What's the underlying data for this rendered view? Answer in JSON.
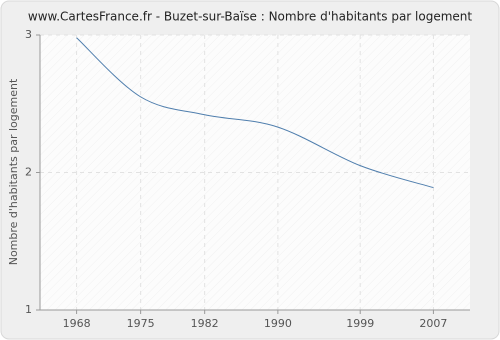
{
  "chart_data": {
    "type": "line",
    "title": "www.CartesFrance.fr - Buzet-sur-Baïse : Nombre d'habitants par logement",
    "y_label": "Nombre d'habitants par logement",
    "x": [
      1968,
      1975,
      1982,
      1990,
      1999,
      2007
    ],
    "series": [
      {
        "color": "#4f7ead",
        "values": [
          2.98,
          2.55,
          2.42,
          2.33,
          2.05,
          1.89
        ]
      }
    ],
    "xlim": [
      1964,
      2011
    ],
    "xticks": [
      1968,
      1975,
      1982,
      1990,
      1999,
      2007
    ],
    "ylim": [
      1,
      3
    ],
    "yticks": [
      1,
      2,
      3
    ],
    "grid": true
  }
}
